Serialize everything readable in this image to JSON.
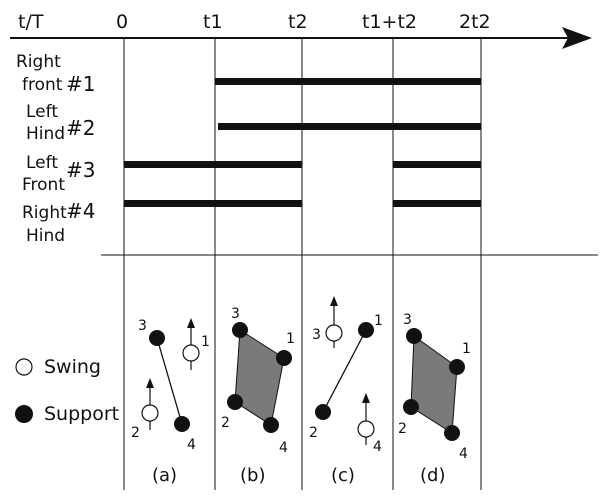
{
  "header": {
    "axis_label": "t/T",
    "ticks": [
      "0",
      "t1",
      "t2",
      "t1+t2",
      "2t2"
    ]
  },
  "legs": [
    {
      "name_line1": "Right",
      "name_line2": "front",
      "number": "#1"
    },
    {
      "name_line1": "Left",
      "name_line2": "Hind",
      "number": "#2"
    },
    {
      "name_line1": "Left",
      "name_line2": "Front",
      "number": "#3"
    },
    {
      "name_line1": "Right",
      "name_line2": "Hind",
      "number": "#4"
    }
  ],
  "legend": {
    "swing": "Swing",
    "support": "Support"
  },
  "panels": {
    "captions": [
      "(a)",
      "(b)",
      "(c)",
      "(d)"
    ],
    "foot_labels": [
      "1",
      "2",
      "3",
      "4"
    ]
  },
  "colors": {
    "line": "#111111",
    "polygon": "#7a7a7a",
    "support_dot": "#111111"
  }
}
